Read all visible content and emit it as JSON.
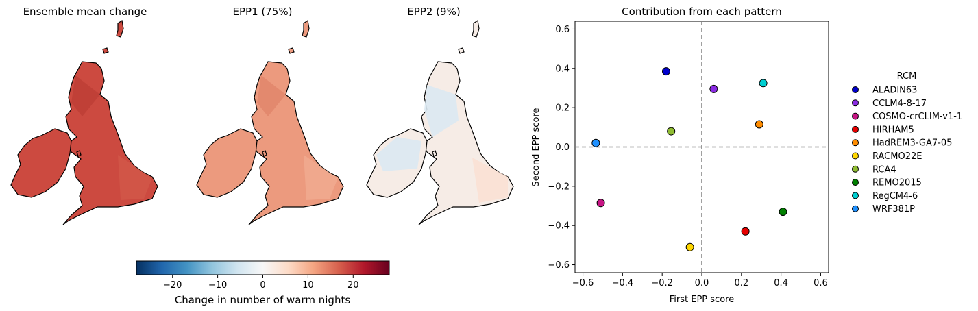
{
  "maps": {
    "panels": [
      {
        "title": "Ensemble mean change",
        "palette": "strong-red"
      },
      {
        "title": "EPP1 (75%)",
        "palette": "light-red"
      },
      {
        "title": "EPP2 (9%)",
        "palette": "near-white"
      }
    ],
    "colorbar": {
      "label": "Change in number of warm nights",
      "ticks": [
        -20,
        -10,
        0,
        10,
        20
      ],
      "range": [
        -28,
        28
      ],
      "colormap": "RdBu_r",
      "stops": [
        "#053061",
        "#2166ac",
        "#4393c3",
        "#92c5de",
        "#d1e5f0",
        "#f7f7f7",
        "#fddbc7",
        "#f4a582",
        "#d6604d",
        "#b2182b",
        "#67001f"
      ]
    }
  },
  "chart_data": {
    "type": "scatter",
    "title": "Contribution from each pattern",
    "xlabel": "First EPP score",
    "ylabel": "Second EPP score",
    "xlim": [
      -0.64,
      0.64
    ],
    "ylim": [
      -0.64,
      0.64
    ],
    "xticks": [
      -0.6,
      -0.4,
      -0.2,
      0.0,
      0.2,
      0.4,
      0.6
    ],
    "yticks": [
      -0.6,
      -0.4,
      -0.2,
      0.0,
      0.2,
      0.4,
      0.6
    ],
    "grid": false,
    "reference_lines": {
      "x": 0,
      "y": 0,
      "style": "dashed",
      "color": "#808080"
    },
    "legend": {
      "title": "RCM",
      "placement": "outside-right"
    },
    "series": [
      {
        "name": "ALADIN63",
        "color": "#0000cd",
        "x": -0.18,
        "y": 0.385
      },
      {
        "name": "CCLM4-8-17",
        "color": "#8a2be2",
        "x": 0.06,
        "y": 0.295
      },
      {
        "name": "COSMO-crCLIM-v1-1",
        "color": "#c71585",
        "x": -0.51,
        "y": -0.285
      },
      {
        "name": "HIRHAM5",
        "color": "#e60000",
        "x": 0.22,
        "y": -0.43
      },
      {
        "name": "HadREM3-GA7-05",
        "color": "#ff8c00",
        "x": 0.29,
        "y": 0.115
      },
      {
        "name": "RACMO22E",
        "color": "#ffd700",
        "x": -0.06,
        "y": -0.51
      },
      {
        "name": "RCA4",
        "color": "#8fbc32",
        "x": -0.155,
        "y": 0.08
      },
      {
        "name": "REMO2015",
        "color": "#008000",
        "x": 0.41,
        "y": -0.33
      },
      {
        "name": "RegCM4-6",
        "color": "#00ced1",
        "x": 0.31,
        "y": 0.325
      },
      {
        "name": "WRF381P",
        "color": "#1e90ff",
        "x": -0.535,
        "y": 0.02
      }
    ]
  }
}
